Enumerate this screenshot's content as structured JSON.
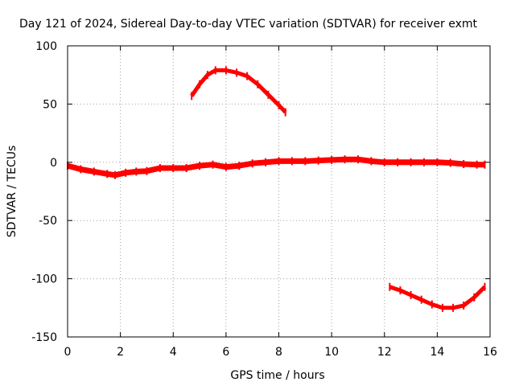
{
  "chart_data": {
    "type": "line",
    "title": "Day 121 of 2024, Sidereal Day-to-day VTEC variation (SDTVAR) for receiver exmt",
    "xlabel": "GPS time / hours",
    "ylabel": "SDTVAR / TECUs",
    "xlim": [
      0,
      16
    ],
    "ylim": [
      -150,
      100
    ],
    "grid": true,
    "color": "#ff0000",
    "x_ticks": [
      0,
      2,
      4,
      6,
      8,
      10,
      12,
      14,
      16
    ],
    "y_ticks": [
      100,
      50,
      0,
      -50,
      -100,
      -150
    ],
    "series": [
      {
        "name": "main-band",
        "points": [
          [
            0,
            -3
          ],
          [
            0.5,
            -6
          ],
          [
            1,
            -8
          ],
          [
            1.5,
            -10
          ],
          [
            1.8,
            -11
          ],
          [
            2.2,
            -9
          ],
          [
            2.6,
            -8
          ],
          [
            3,
            -7.5
          ],
          [
            3.5,
            -5
          ],
          [
            4,
            -5
          ],
          [
            4.5,
            -5
          ],
          [
            5,
            -3
          ],
          [
            5.5,
            -2
          ],
          [
            6,
            -4
          ],
          [
            6.5,
            -3
          ],
          [
            7,
            -1
          ],
          [
            7.5,
            0
          ],
          [
            8,
            1
          ],
          [
            8.5,
            1
          ],
          [
            9,
            1
          ],
          [
            9.5,
            1.5
          ],
          [
            10,
            2
          ],
          [
            10.5,
            2.5
          ],
          [
            11,
            2.5
          ],
          [
            11.5,
            1
          ],
          [
            12,
            0
          ],
          [
            12.5,
            0
          ],
          [
            13,
            0
          ],
          [
            13.5,
            0
          ],
          [
            14,
            0
          ],
          [
            14.5,
            -0.5
          ],
          [
            15,
            -1.5
          ],
          [
            15.5,
            -2
          ],
          [
            15.8,
            -2
          ]
        ]
      },
      {
        "name": "upper-arc",
        "points": [
          [
            4.7,
            57
          ],
          [
            5,
            67
          ],
          [
            5.3,
            75
          ],
          [
            5.6,
            79
          ],
          [
            6,
            79
          ],
          [
            6.4,
            77
          ],
          [
            6.8,
            74
          ],
          [
            7.2,
            67
          ],
          [
            7.6,
            58
          ],
          [
            8,
            49
          ],
          [
            8.25,
            43
          ]
        ]
      },
      {
        "name": "lower-arc",
        "points": [
          [
            12.2,
            -107
          ],
          [
            12.6,
            -110
          ],
          [
            13,
            -114
          ],
          [
            13.4,
            -118
          ],
          [
            13.8,
            -122
          ],
          [
            14.2,
            -125
          ],
          [
            14.6,
            -125
          ],
          [
            15,
            -123
          ],
          [
            15.4,
            -116
          ],
          [
            15.8,
            -107
          ]
        ]
      }
    ]
  }
}
